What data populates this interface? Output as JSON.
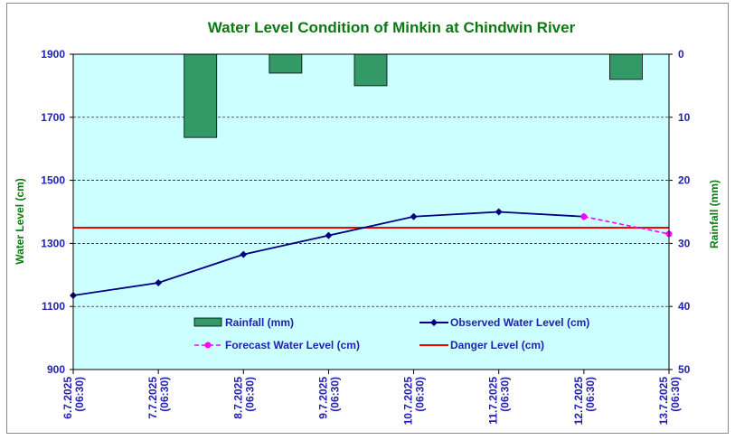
{
  "chart_data": {
    "type": "bar+line",
    "title": "Water Level Condition of Minkin at Chindwin River",
    "ylabel_left": "Water Level (cm)",
    "ylabel_right": "Rainfall (mm)",
    "ylim_left": [
      900,
      1900
    ],
    "ylim_right": [
      50,
      0
    ],
    "yticks_left": [
      "900",
      "1100",
      "1300",
      "1500",
      "1700",
      "1900"
    ],
    "yticks_right": [
      "50",
      "40",
      "30",
      "20",
      "10",
      "0"
    ],
    "grid": true,
    "categories": [
      {
        "date": "6.7.2025",
        "time": "(06:30)"
      },
      {
        "date": "7.7.2025",
        "time": "(06:30)"
      },
      {
        "date": "8.7.2025",
        "time": "(06:30)"
      },
      {
        "date": "9.7.2025",
        "time": "(06:30)"
      },
      {
        "date": "10.7.2025",
        "time": "(06:30)"
      },
      {
        "date": "11.7.2025",
        "time": "(06:30)"
      },
      {
        "date": "12.7.2025",
        "time": "(06:30)"
      },
      {
        "date": "13.7.2025",
        "time": "(06:30)"
      }
    ],
    "series": [
      {
        "name": "Rainfall (mm)",
        "type": "bar",
        "axis": "right",
        "color": "#339966",
        "values": [
          0,
          13.2,
          3.0,
          5.0,
          0,
          0,
          4.0,
          0
        ]
      },
      {
        "name": "Observed Water Level (cm)",
        "type": "line",
        "axis": "left",
        "color": "#000080",
        "values": [
          1135,
          1175,
          1265,
          1325,
          1385,
          1400,
          1385,
          null
        ]
      },
      {
        "name": "Forecast Water Level (cm)",
        "type": "line-dashed",
        "axis": "left",
        "color": "#ff00ff",
        "values": [
          null,
          null,
          null,
          null,
          null,
          null,
          1385,
          1330
        ]
      },
      {
        "name": "Danger Level (cm)",
        "type": "hline",
        "axis": "left",
        "color": "#ff0000",
        "value": 1350
      }
    ],
    "legend_position": "inside-bottom",
    "plot_background": "#ccffff"
  }
}
